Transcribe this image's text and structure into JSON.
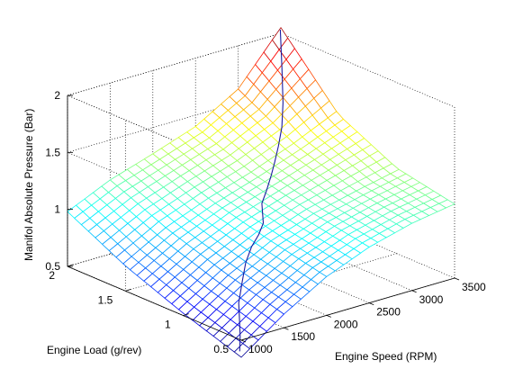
{
  "chart_data": {
    "type": "surface",
    "title": "",
    "xlabel": "Engine Speed (RPM)",
    "ylabel": "Engine Load (g/rev)",
    "zlabel": "Manifol Absolute Pressure (Bar)",
    "xlim": [
      1000,
      3500
    ],
    "ylim": [
      0.5,
      2
    ],
    "zlim": [
      0.5,
      2
    ],
    "x_ticks": [
      1000,
      1500,
      2000,
      2500,
      3000,
      3500
    ],
    "y_ticks": [
      0.5,
      1,
      1.5,
      2
    ],
    "z_ticks": [
      0.5,
      1,
      1.5,
      2
    ],
    "x_tick_labels": [
      "1000",
      "1500",
      "2000",
      "2500",
      "3000",
      "3500"
    ],
    "y_tick_labels": [
      "0.5",
      "1",
      "1.5",
      "2"
    ],
    "z_tick_labels": [
      "0.5",
      "1",
      "1.5",
      "2"
    ],
    "grid": true,
    "box": true,
    "colormap": "jet",
    "surface": {
      "description_values": "MAP (Bar) sampled on a grid of engine speed (RPM) × engine load (g/rev)",
      "speed_rpm": [
        1000,
        1500,
        2000,
        2500,
        3000,
        3500
      ],
      "load_g_per_rev": [
        0.5,
        1.0,
        1.5,
        2.0
      ],
      "map_bar": [
        [
          0.35,
          0.52,
          0.72,
          0.98
        ],
        [
          0.62,
          0.76,
          0.93,
          1.15
        ],
        [
          0.84,
          0.95,
          1.08,
          1.27
        ],
        [
          0.99,
          1.08,
          1.2,
          1.4
        ],
        [
          1.09,
          1.17,
          1.34,
          1.62
        ],
        [
          1.15,
          1.25,
          1.5,
          2.05
        ]
      ]
    },
    "series": [
      {
        "type": "line3d",
        "color": "#1a1aa0",
        "points": [
          [
            1050,
            0.55,
            0.37
          ],
          [
            1150,
            0.62,
            0.45
          ],
          [
            1250,
            0.7,
            0.55
          ],
          [
            1350,
            0.78,
            0.63
          ],
          [
            1500,
            0.86,
            0.75
          ],
          [
            1650,
            0.94,
            0.85
          ],
          [
            1800,
            1.0,
            0.93
          ],
          [
            1950,
            1.05,
            0.98
          ],
          [
            2100,
            1.12,
            1.02
          ],
          [
            2200,
            1.2,
            1.05
          ],
          [
            2300,
            1.28,
            1.08
          ],
          [
            2450,
            1.35,
            1.13
          ],
          [
            2600,
            1.42,
            1.2
          ],
          [
            2750,
            1.5,
            1.25
          ],
          [
            2900,
            1.58,
            1.32
          ],
          [
            3050,
            1.66,
            1.42
          ],
          [
            3200,
            1.76,
            1.56
          ],
          [
            3350,
            1.88,
            1.78
          ],
          [
            3480,
            1.99,
            2.04
          ]
        ]
      }
    ]
  }
}
